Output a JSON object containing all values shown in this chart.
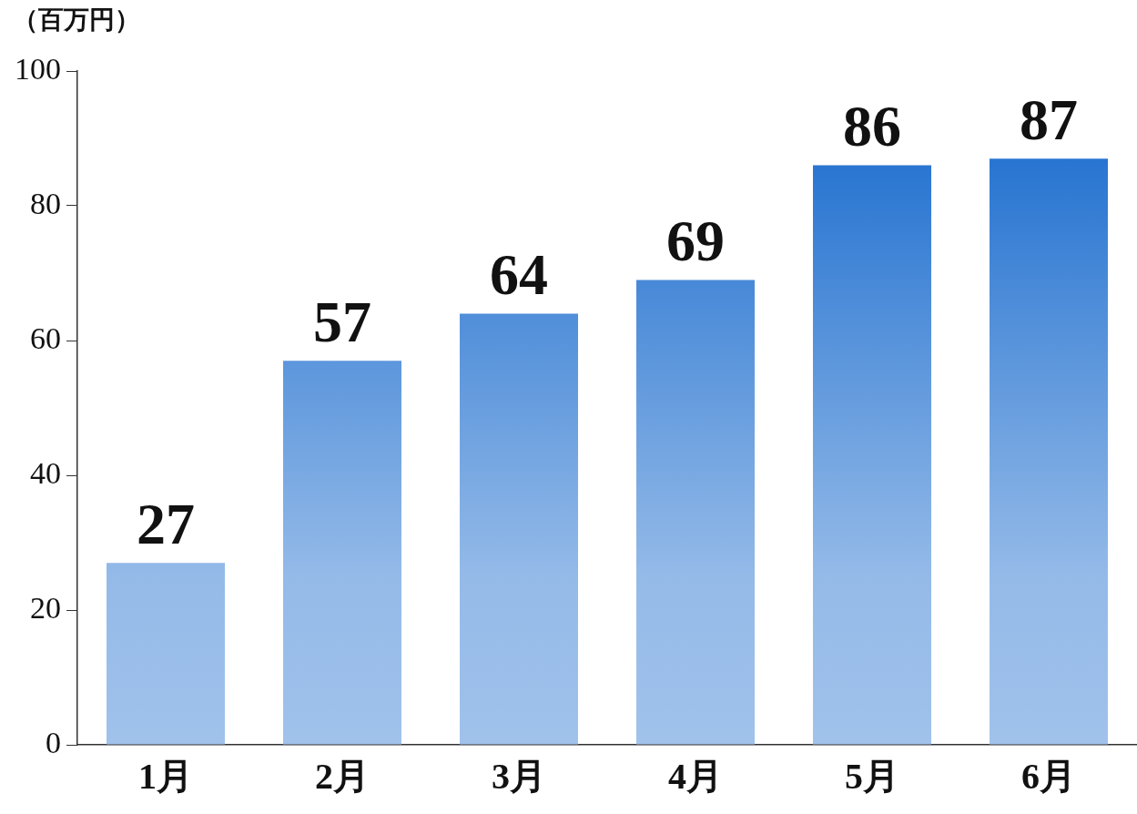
{
  "chart_data": {
    "type": "bar",
    "ylabel": "（百万円）",
    "categories": [
      "1月",
      "2月",
      "3月",
      "4月",
      "5月",
      "6月"
    ],
    "values": [
      27,
      57,
      64,
      69,
      86,
      87
    ],
    "color": "#1166cc",
    "ylim": [
      0,
      100
    ],
    "yticks": [
      0,
      20,
      40,
      60,
      80,
      100
    ],
    "grid": false,
    "legend": false,
    "data_labels": true
  }
}
